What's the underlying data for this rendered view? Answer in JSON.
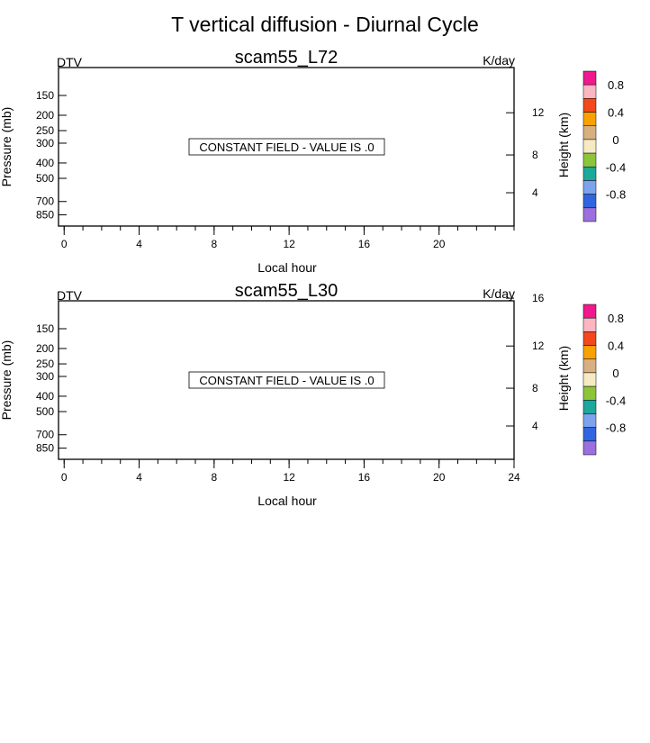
{
  "title": "T vertical diffusion - Diurnal Cycle",
  "chart_data": [
    {
      "type": "heatmap",
      "title": "scam55_L72",
      "left_label": "DTV",
      "right_label": "K/day",
      "xlabel": "Local hour",
      "ylabel": "Pressure (mb)",
      "right_axis_label": "Height (km)",
      "xlim": [
        -0.3,
        24
      ],
      "x_ticks": [
        0,
        4,
        8,
        12,
        16,
        20
      ],
      "x_minor_step": 1,
      "y_scale": "log",
      "ylim": [
        100,
        1000
      ],
      "y_ticks": [
        150,
        200,
        250,
        300,
        400,
        500,
        700,
        850
      ],
      "height_ticks": [
        4,
        8,
        12
      ],
      "annotation": "CONSTANT FIELD - VALUE IS .0",
      "colorbar_levels": [
        "0.8",
        "0.4",
        "0",
        "-0.4",
        "-0.8"
      ],
      "colorbar_colors": [
        "#f0188c",
        "#fcb6c1",
        "#f2481b",
        "#f8a100",
        "#d8b080",
        "#f5eac2",
        "#8cc43a",
        "#1ca89b",
        "#7da3ee",
        "#3165e0",
        "#9b6fde"
      ]
    },
    {
      "type": "heatmap",
      "title": "scam55_L30",
      "left_label": "DTV",
      "right_label": "K/day",
      "xlabel": "Local hour",
      "ylabel": "Pressure (mb)",
      "right_axis_label": "Height (km)",
      "xlim": [
        -0.3,
        24
      ],
      "x_ticks": [
        0,
        4,
        8,
        12,
        16,
        20,
        24
      ],
      "x_minor_step": 1,
      "y_scale": "log",
      "ylim": [
        100,
        1000
      ],
      "y_ticks": [
        150,
        200,
        250,
        300,
        400,
        500,
        700,
        850
      ],
      "height_ticks": [
        4,
        8,
        12,
        16
      ],
      "annotation": "CONSTANT FIELD - VALUE IS .0",
      "colorbar_levels": [
        "0.8",
        "0.4",
        "0",
        "-0.4",
        "-0.8"
      ],
      "colorbar_colors": [
        "#f0188c",
        "#fcb6c1",
        "#f2481b",
        "#f8a100",
        "#d8b080",
        "#f5eac2",
        "#8cc43a",
        "#1ca89b",
        "#7da3ee",
        "#3165e0",
        "#9b6fde"
      ]
    }
  ]
}
